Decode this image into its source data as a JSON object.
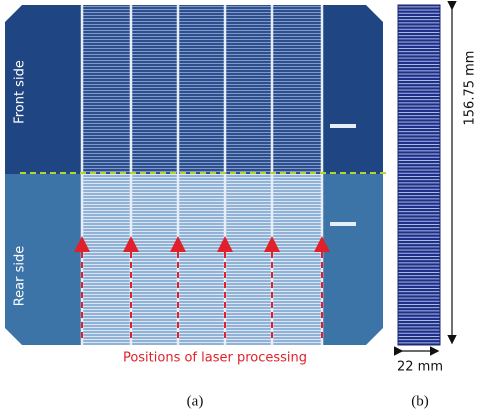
{
  "panel_a": {
    "front_label": "Front side",
    "rear_label": "Rear side",
    "laser_label": "Positions of laser processing",
    "caption": "(a)"
  },
  "panel_b": {
    "height_label": "156.75 mm",
    "width_label": "22 mm",
    "caption": "(b)"
  }
}
